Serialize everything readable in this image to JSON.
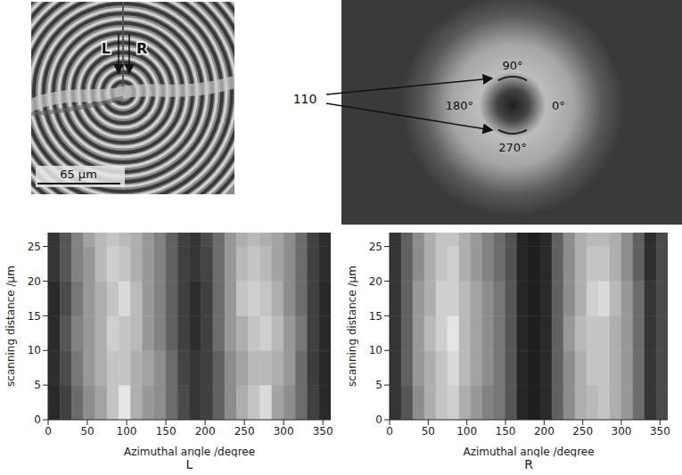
{
  "micrograph": {
    "arrow_labels": [
      "L",
      "R"
    ],
    "scale_bar": "65 μm"
  },
  "diffraction": {
    "reflection": "110",
    "azimuth_labels": {
      "top": "90°",
      "left": "180°",
      "right": "0°",
      "bottom": "270°"
    }
  },
  "chart_data": [
    {
      "type": "heatmap",
      "label": "L",
      "x_label": "Azimuthal angle /degree",
      "y_label": "scanning distance /μm",
      "xlim": [
        0,
        360
      ],
      "xticks": [
        0,
        50,
        100,
        150,
        200,
        250,
        300,
        350
      ],
      "ylim": [
        0,
        27
      ],
      "yticks": [
        0,
        5,
        10,
        15,
        20,
        25
      ],
      "x_edges": [
        0,
        15,
        30,
        45,
        60,
        75,
        90,
        105,
        120,
        135,
        150,
        165,
        180,
        195,
        210,
        225,
        240,
        255,
        270,
        285,
        300,
        315,
        330,
        345,
        360
      ],
      "y_edges": [
        0,
        5,
        10,
        15,
        20,
        25,
        27
      ],
      "cells": [
        [
          0.1,
          0.2,
          0.4,
          0.55,
          0.65,
          0.8,
          0.95,
          0.7,
          0.6,
          0.55,
          0.4,
          0.25,
          0.15,
          0.2,
          0.35,
          0.55,
          0.7,
          0.8,
          0.9,
          0.65,
          0.55,
          0.4,
          0.2,
          0.1
        ],
        [
          0.12,
          0.25,
          0.45,
          0.6,
          0.7,
          0.8,
          0.8,
          0.7,
          0.65,
          0.55,
          0.4,
          0.22,
          0.15,
          0.2,
          0.35,
          0.55,
          0.65,
          0.75,
          0.75,
          0.7,
          0.6,
          0.4,
          0.18,
          0.1
        ],
        [
          0.1,
          0.3,
          0.5,
          0.6,
          0.7,
          0.85,
          0.8,
          0.75,
          0.6,
          0.5,
          0.35,
          0.2,
          0.12,
          0.2,
          0.4,
          0.6,
          0.7,
          0.8,
          0.85,
          0.75,
          0.6,
          0.45,
          0.2,
          0.1
        ],
        [
          0.1,
          0.25,
          0.45,
          0.6,
          0.7,
          0.8,
          0.9,
          0.75,
          0.6,
          0.5,
          0.35,
          0.2,
          0.12,
          0.2,
          0.4,
          0.6,
          0.8,
          0.85,
          0.8,
          0.7,
          0.55,
          0.4,
          0.2,
          0.1
        ],
        [
          0.15,
          0.3,
          0.5,
          0.6,
          0.75,
          0.85,
          0.8,
          0.7,
          0.6,
          0.5,
          0.35,
          0.2,
          0.15,
          0.22,
          0.4,
          0.6,
          0.75,
          0.8,
          0.75,
          0.65,
          0.55,
          0.4,
          0.2,
          0.12
        ],
        [
          0.15,
          0.3,
          0.5,
          0.65,
          0.75,
          0.8,
          0.75,
          0.7,
          0.6,
          0.5,
          0.35,
          0.2,
          0.15,
          0.25,
          0.4,
          0.6,
          0.7,
          0.75,
          0.7,
          0.65,
          0.55,
          0.4,
          0.2,
          0.12
        ]
      ]
    },
    {
      "type": "heatmap",
      "label": "R",
      "x_label": "Azimuthal angle /degree",
      "y_label": "scanning distance /μm",
      "xlim": [
        0,
        360
      ],
      "xticks": [
        0,
        50,
        100,
        150,
        200,
        250,
        300,
        350
      ],
      "ylim": [
        0,
        27
      ],
      "yticks": [
        0,
        5,
        10,
        15,
        20,
        25
      ],
      "x_edges": [
        0,
        15,
        30,
        45,
        60,
        75,
        90,
        105,
        120,
        135,
        150,
        165,
        180,
        195,
        210,
        225,
        240,
        255,
        270,
        285,
        300,
        315,
        330,
        345,
        360
      ],
      "y_edges": [
        0,
        5,
        10,
        15,
        20,
        25,
        27
      ],
      "cells": [
        [
          0.15,
          0.3,
          0.55,
          0.7,
          0.8,
          0.85,
          0.7,
          0.6,
          0.5,
          0.45,
          0.3,
          0.08,
          0.05,
          0.1,
          0.35,
          0.55,
          0.7,
          0.75,
          0.8,
          0.7,
          0.6,
          0.4,
          0.15,
          0.25
        ],
        [
          0.15,
          0.35,
          0.6,
          0.7,
          0.8,
          0.9,
          0.75,
          0.65,
          0.55,
          0.45,
          0.3,
          0.08,
          0.05,
          0.1,
          0.35,
          0.55,
          0.7,
          0.8,
          0.8,
          0.7,
          0.6,
          0.4,
          0.15,
          0.25
        ],
        [
          0.15,
          0.35,
          0.6,
          0.75,
          0.85,
          0.95,
          0.75,
          0.65,
          0.55,
          0.45,
          0.3,
          0.08,
          0.05,
          0.1,
          0.35,
          0.6,
          0.75,
          0.8,
          0.8,
          0.7,
          0.6,
          0.4,
          0.15,
          0.25
        ],
        [
          0.15,
          0.35,
          0.6,
          0.7,
          0.85,
          0.85,
          0.75,
          0.65,
          0.55,
          0.45,
          0.3,
          0.08,
          0.05,
          0.1,
          0.35,
          0.55,
          0.7,
          0.85,
          0.9,
          0.75,
          0.6,
          0.4,
          0.15,
          0.25
        ],
        [
          0.15,
          0.35,
          0.55,
          0.7,
          0.8,
          0.85,
          0.7,
          0.6,
          0.5,
          0.4,
          0.28,
          0.08,
          0.05,
          0.1,
          0.35,
          0.55,
          0.7,
          0.8,
          0.8,
          0.7,
          0.55,
          0.35,
          0.12,
          0.25
        ],
        [
          0.15,
          0.35,
          0.55,
          0.7,
          0.8,
          0.8,
          0.7,
          0.6,
          0.5,
          0.4,
          0.28,
          0.08,
          0.05,
          0.1,
          0.35,
          0.55,
          0.7,
          0.75,
          0.75,
          0.7,
          0.55,
          0.35,
          0.12,
          0.25
        ]
      ]
    }
  ]
}
